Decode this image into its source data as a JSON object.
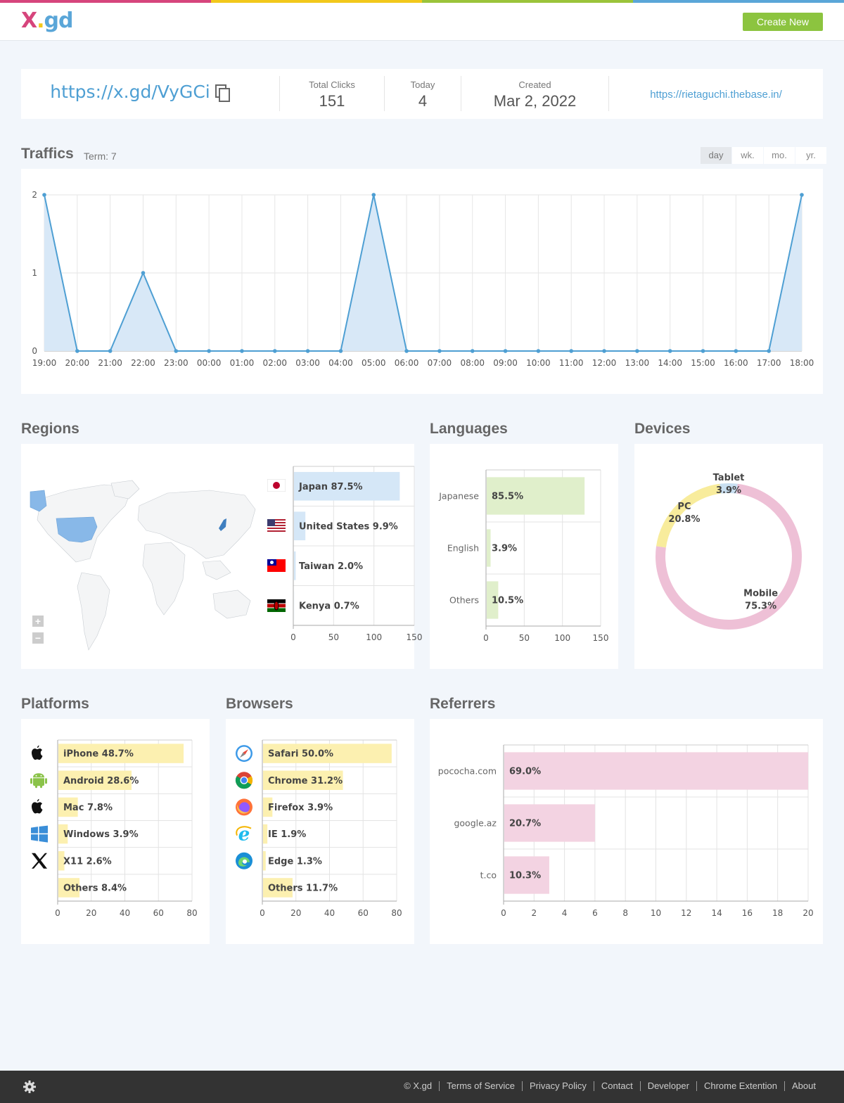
{
  "header": {
    "logo": {
      "x": "X",
      "dot": ".",
      "gd": "gd"
    },
    "create_label": "Create New",
    "stripe_colors": [
      "#d6457c",
      "#f2c81b",
      "#9bc43a",
      "#5aa6d8"
    ]
  },
  "summary": {
    "short_url": "https://x.gd/VyGCi",
    "copy_icon": "copy-icon",
    "total_clicks_label": "Total Clicks",
    "total_clicks": "151",
    "today_label": "Today",
    "today": "4",
    "created_label": "Created",
    "created": "Mar 2, 2022",
    "destination": "https://rietaguchi.thebase.in/"
  },
  "traffics": {
    "title": "Traffics",
    "term": "Term: 7",
    "tabs": [
      "day",
      "wk.",
      "mo.",
      "yr."
    ],
    "active_tab": "day",
    "chart_data": {
      "type": "area",
      "x": [
        "19:00",
        "20:00",
        "21:00",
        "22:00",
        "23:00",
        "00:00",
        "01:00",
        "02:00",
        "03:00",
        "04:00",
        "05:00",
        "06:00",
        "07:00",
        "08:00",
        "09:00",
        "10:00",
        "11:00",
        "12:00",
        "13:00",
        "14:00",
        "15:00",
        "16:00",
        "17:00",
        "18:00"
      ],
      "values": [
        2,
        0,
        0,
        1,
        0,
        0,
        0,
        0,
        0,
        0,
        2,
        0,
        0,
        0,
        0,
        0,
        0,
        0,
        0,
        0,
        0,
        0,
        0,
        2
      ],
      "yticks": [
        "0",
        "1",
        "2"
      ],
      "ylim": [
        0,
        2
      ],
      "grid": true,
      "color": "#4e9fd3"
    }
  },
  "regions": {
    "title": "Regions",
    "zoom_in": "+",
    "zoom_out": "−",
    "chart_data": {
      "type": "bar",
      "orientation": "horizontal",
      "categories": [
        "Japan",
        "United States",
        "Taiwan",
        "Kenya"
      ],
      "labels": [
        "87.5%",
        "9.9%",
        "2.0%",
        "0.7%"
      ],
      "values": [
        132,
        15,
        3,
        1
      ],
      "xticks": [
        "0",
        "50",
        "100",
        "150"
      ],
      "xlim": [
        0,
        150
      ],
      "color": "#d5e7f7"
    }
  },
  "languages": {
    "title": "Languages",
    "chart_data": {
      "type": "bar",
      "orientation": "horizontal",
      "categories": [
        "Japanese",
        "English",
        "Others"
      ],
      "labels": [
        "85.5%",
        "3.9%",
        "10.5%"
      ],
      "values": [
        129,
        6,
        16
      ],
      "xticks": [
        "0",
        "50",
        "100",
        "150"
      ],
      "xlim": [
        0,
        150
      ],
      "color": "#e0efcb"
    }
  },
  "devices": {
    "title": "Devices",
    "chart_data": {
      "type": "pie",
      "donut": true,
      "categories": [
        "Mobile",
        "PC",
        "Tablet"
      ],
      "labels": [
        "75.3%",
        "20.8%",
        "3.9%"
      ],
      "values": [
        75.3,
        20.8,
        3.9
      ],
      "colors": [
        "#eec0d6",
        "#f8ec9c",
        "#c9dff1"
      ]
    }
  },
  "platforms": {
    "title": "Platforms",
    "icons": [
      "apple-icon",
      "android-icon",
      "apple-icon",
      "windows-icon",
      "x11-icon",
      ""
    ],
    "chart_data": {
      "type": "bar",
      "orientation": "horizontal",
      "categories": [
        "iPhone",
        "Android",
        "Mac",
        "Windows",
        "X11",
        "Others"
      ],
      "labels": [
        "48.7%",
        "28.6%",
        "7.8%",
        "3.9%",
        "2.6%",
        "8.4%"
      ],
      "values": [
        75,
        44,
        12,
        6,
        4,
        13
      ],
      "xticks": [
        "0",
        "20",
        "40",
        "60",
        "80"
      ],
      "xlim": [
        0,
        80
      ],
      "color": "#fcf0b0"
    }
  },
  "browsers": {
    "title": "Browsers",
    "icons": [
      "safari-icon",
      "chrome-icon",
      "firefox-icon",
      "ie-icon",
      "edge-icon",
      ""
    ],
    "chart_data": {
      "type": "bar",
      "orientation": "horizontal",
      "categories": [
        "Safari",
        "Chrome",
        "Firefox",
        "IE",
        "Edge",
        "Others"
      ],
      "labels": [
        "50.0%",
        "31.2%",
        "3.9%",
        "1.9%",
        "1.3%",
        "11.7%"
      ],
      "values": [
        77,
        48,
        6,
        3,
        2,
        18
      ],
      "xticks": [
        "0",
        "20",
        "40",
        "60",
        "80"
      ],
      "xlim": [
        0,
        80
      ],
      "color": "#fcf0b0"
    }
  },
  "referrers": {
    "title": "Referrers",
    "chart_data": {
      "type": "bar",
      "orientation": "horizontal",
      "categories": [
        "pococha.com",
        "google.az",
        "t.co"
      ],
      "labels": [
        "69.0%",
        "20.7%",
        "10.3%"
      ],
      "values": [
        20,
        6,
        3
      ],
      "xticks": [
        "0",
        "2",
        "4",
        "6",
        "8",
        "10",
        "12",
        "14",
        "16",
        "18",
        "20"
      ],
      "xlim": [
        0,
        20
      ],
      "color": "#f3d3e2"
    }
  },
  "footer": {
    "settings_icon": "gear-icon",
    "links": [
      "© X.gd",
      "Terms of Service",
      "Privacy Policy",
      "Contact",
      "Developer",
      "Chrome Extention",
      "About"
    ]
  }
}
